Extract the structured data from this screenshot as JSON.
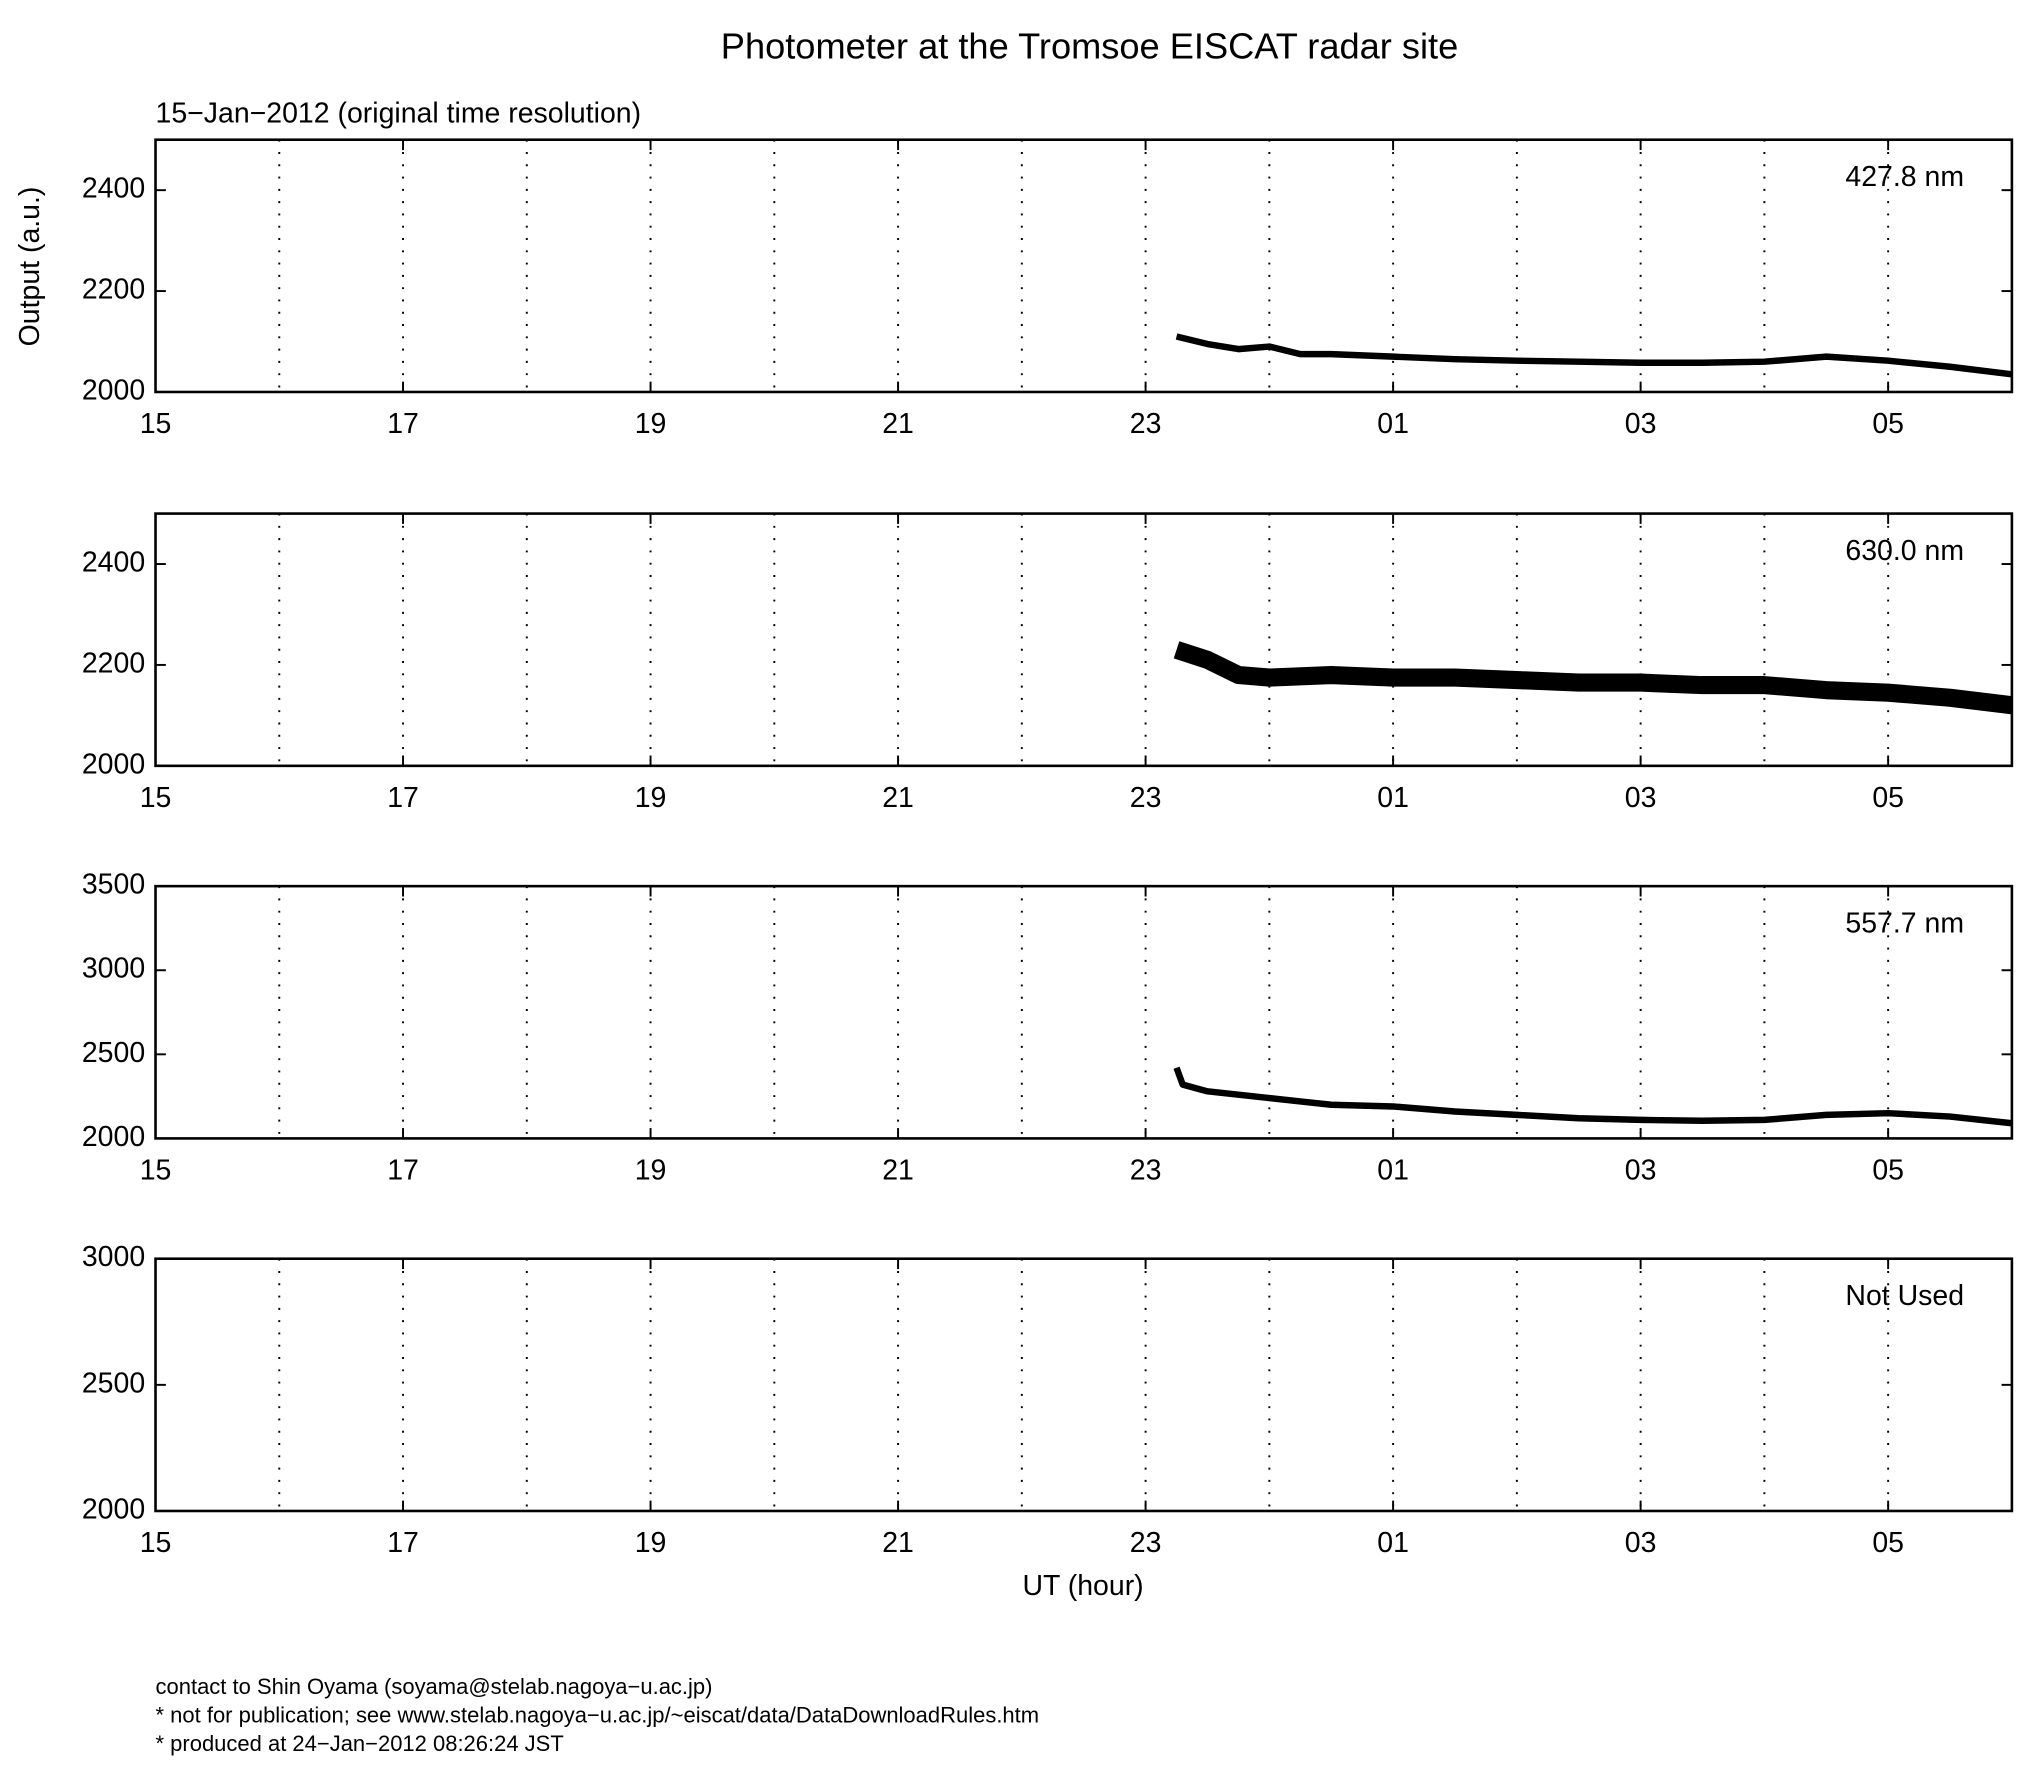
{
  "title": "Photometer at the Tromsoe EISCAT radar site",
  "subtitle": "15−Jan−2012 (original time resolution)",
  "ylabel": "Output (a.u.)",
  "xlabel": "UT (hour)",
  "footer": [
    "contact to Shin Oyama (soyama@stelab.nagoya−u.ac.jp)",
    "* not for publication; see www.stelab.nagoya−u.ac.jp/~eiscat/data/DataDownloadRules.htm",
    "* produced at 24−Jan−2012 08:26:24 JST"
  ],
  "chart_data": [
    {
      "type": "line",
      "annotation": "427.8 nm",
      "xlim": [
        15,
        30
      ],
      "ylim": [
        2000,
        2500
      ],
      "yticks": [
        2000,
        2200,
        2400
      ],
      "xticks": [
        15,
        17,
        19,
        21,
        23,
        {
          "value": 25,
          "label": "01"
        },
        {
          "value": 27,
          "label": "03"
        },
        {
          "value": 29,
          "label": "05"
        }
      ],
      "xgrid": [
        16,
        17,
        18,
        19,
        20,
        21,
        22,
        23,
        24,
        25,
        26,
        27,
        28,
        29
      ],
      "x": [
        23.25,
        23.5,
        23.75,
        24,
        24.25,
        24.5,
        25,
        25.5,
        26,
        26.5,
        27,
        27.5,
        28,
        28.5,
        29,
        29.5,
        30
      ],
      "series": [
        {
          "color": "#000000",
          "values": [
            2110,
            2095,
            2085,
            2090,
            2075,
            2075,
            2070,
            2065,
            2062,
            2060,
            2058,
            2058,
            2060,
            2070,
            2062,
            2050,
            2035
          ]
        }
      ]
    },
    {
      "type": "line",
      "annotation": "630.0 nm",
      "xlim": [
        15,
        30
      ],
      "ylim": [
        2000,
        2500
      ],
      "yticks": [
        2000,
        2200,
        2400
      ],
      "xticks": [
        15,
        17,
        19,
        21,
        23,
        {
          "value": 25,
          "label": "01"
        },
        {
          "value": 27,
          "label": "03"
        },
        {
          "value": 29,
          "label": "05"
        }
      ],
      "xgrid": [
        16,
        17,
        18,
        19,
        20,
        21,
        22,
        23,
        24,
        25,
        26,
        27,
        28,
        29
      ],
      "x": [
        23.25,
        23.5,
        23.75,
        24,
        24.5,
        25,
        25.5,
        26,
        26.5,
        27,
        27.5,
        28,
        28.5,
        29,
        29.5,
        30
      ],
      "series": [
        {
          "color": "#000000",
          "values": [
            2230,
            2210,
            2180,
            2175,
            2180,
            2175,
            2175,
            2170,
            2165,
            2165,
            2160,
            2160,
            2150,
            2145,
            2135,
            2120
          ]
        }
      ]
    },
    {
      "type": "line",
      "annotation": "557.7 nm",
      "xlim": [
        15,
        30
      ],
      "ylim": [
        2000,
        3500
      ],
      "yticks": [
        2000,
        2500,
        3000,
        3500
      ],
      "xticks": [
        15,
        17,
        19,
        21,
        23,
        {
          "value": 25,
          "label": "01"
        },
        {
          "value": 27,
          "label": "03"
        },
        {
          "value": 29,
          "label": "05"
        }
      ],
      "xgrid": [
        16,
        17,
        18,
        19,
        20,
        21,
        22,
        23,
        24,
        25,
        26,
        27,
        28,
        29
      ],
      "x": [
        23.25,
        23.3,
        23.5,
        23.75,
        24,
        24.25,
        24.5,
        25,
        25.5,
        26,
        26.5,
        27,
        27.5,
        28,
        28.5,
        29,
        29.5,
        30
      ],
      "series": [
        {
          "color": "#000000",
          "values": [
            2420,
            2320,
            2280,
            2260,
            2240,
            2220,
            2200,
            2190,
            2160,
            2140,
            2120,
            2110,
            2105,
            2110,
            2140,
            2150,
            2130,
            2090
          ]
        }
      ]
    },
    {
      "type": "line",
      "annotation": "Not Used",
      "xlim": [
        15,
        30
      ],
      "ylim": [
        2000,
        3000
      ],
      "yticks": [
        2000,
        2500,
        3000
      ],
      "xticks": [
        15,
        17,
        19,
        21,
        23,
        {
          "value": 25,
          "label": "01"
        },
        {
          "value": 27,
          "label": "03"
        },
        {
          "value": 29,
          "label": "05"
        }
      ],
      "xgrid": [
        16,
        17,
        18,
        19,
        20,
        21,
        22,
        23,
        24,
        25,
        26,
        27,
        28,
        29
      ],
      "x": [],
      "series": [
        {
          "color": "#000000",
          "values": []
        }
      ]
    }
  ]
}
